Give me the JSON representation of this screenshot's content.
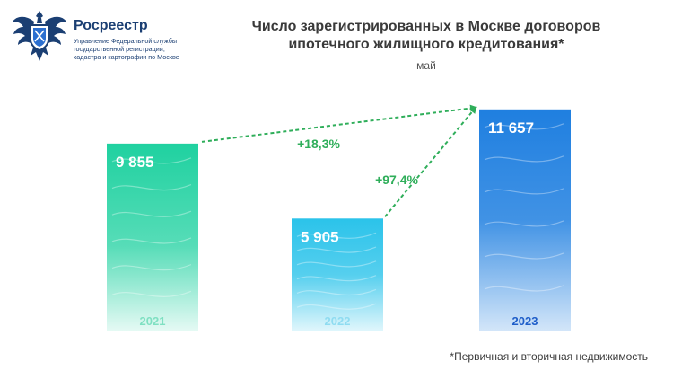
{
  "header": {
    "org_name": "Росреестр",
    "org_sub_1": "Управление Федеральной службы",
    "org_sub_2": "государственной регистрации,",
    "org_sub_3": "кадастра и картографии по Москве"
  },
  "colors": {
    "brand": "#1b3f73",
    "bar_green": "#1fd1a0",
    "bar_cyan": "#2bc3ea",
    "bar_blue": "#1f7fe0",
    "arrow_green": "#2fae5a"
  },
  "chart_data": {
    "type": "bar",
    "title": "Число зарегистрированных в Москве договоров ипотечного жилищного кредитования*",
    "subtitle": "май",
    "categories": [
      "2021",
      "2022",
      "2023"
    ],
    "values": [
      9855,
      5905,
      11657
    ],
    "value_labels": [
      "9 855",
      "5 905",
      "11 657"
    ],
    "annotations": [
      {
        "text": "+18,3%",
        "from": "2021",
        "to": "2023"
      },
      {
        "text": "+97,4%",
        "from": "2022",
        "to": "2023"
      }
    ],
    "ylim": [
      0,
      12500
    ],
    "grid": false,
    "legend": "none",
    "footnote": "*Первичная и вторичная недвижимость"
  }
}
